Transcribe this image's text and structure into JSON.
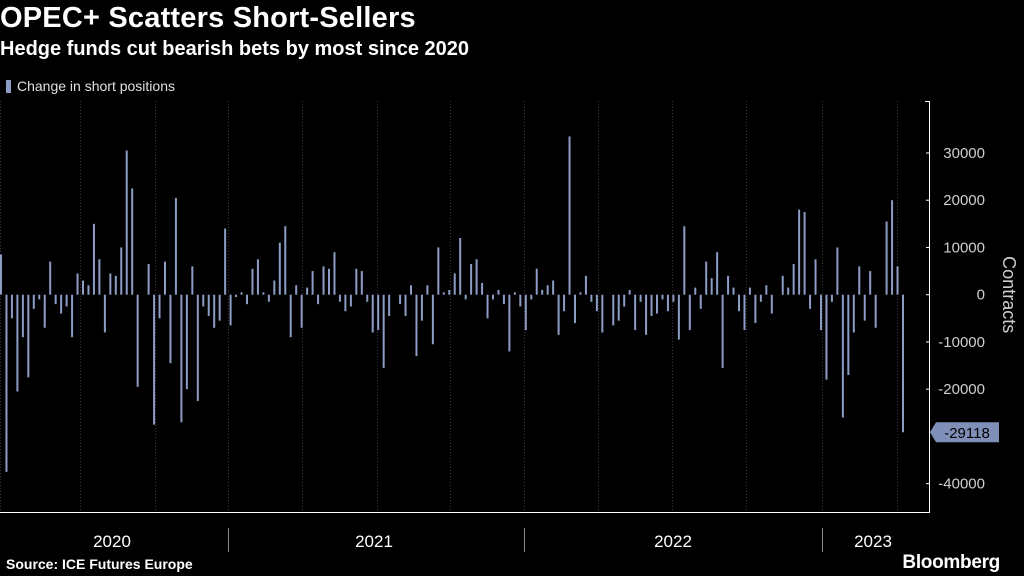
{
  "title": "OPEC+ Scatters Short-Sellers",
  "subtitle": "Hedge funds cut bearish bets by most since 2020",
  "source": "Source: ICE Futures Europe",
  "brand": "Bloomberg",
  "colors": {
    "bar": "#8c9cc4",
    "background": "#000000",
    "grid": "#3a3a3a",
    "text": "#ffffff",
    "muted": "#cfcfcf"
  },
  "chart_data": {
    "type": "bar",
    "title": "OPEC+ Scatters Short-Sellers",
    "subtitle": "Hedge funds cut bearish bets by most since 2020",
    "ylabel": "Contracts",
    "ylim": [
      -46000,
      41000
    ],
    "yticks": [
      30000,
      20000,
      10000,
      0,
      -10000,
      -20000,
      -40000
    ],
    "y_axis_side": "right",
    "grid": "vertical dotted",
    "legend": "top-left",
    "x_tick_labels": [
      "2020",
      "2021",
      "2022",
      "2023"
    ],
    "callout": {
      "label": "-29118",
      "value": -29118
    },
    "series": [
      {
        "name": "Change in short positions",
        "values": [
          8500,
          -37500,
          -5000,
          -20500,
          -9000,
          -17500,
          -3000,
          -1000,
          -7000,
          7000,
          -2000,
          -4000,
          -2500,
          -9000,
          4500,
          3000,
          2000,
          15000,
          7500,
          -8000,
          4500,
          4000,
          10000,
          30500,
          22500,
          -19500,
          0,
          6500,
          -27500,
          -5000,
          7000,
          -14500,
          20500,
          -27000,
          -20000,
          6000,
          -22500,
          -2500,
          -4500,
          -7000,
          -5500,
          14000,
          -6500,
          -500,
          500,
          -2000,
          5500,
          7500,
          500,
          -1500,
          3000,
          11000,
          14500,
          -9000,
          2000,
          -7000,
          1500,
          5000,
          -2000,
          6000,
          5500,
          9000,
          -1500,
          -3500,
          -2500,
          5500,
          5000,
          -1500,
          -8000,
          -7500,
          -15500,
          -4500,
          0,
          -2000,
          -4500,
          2000,
          -13000,
          -5500,
          2000,
          -10500,
          10000,
          500,
          1000,
          4500,
          12000,
          -1000,
          6500,
          7500,
          2500,
          -5000,
          -1000,
          1000,
          -2000,
          -12000,
          500,
          -2500,
          -7500,
          -1000,
          5500,
          1000,
          2000,
          3000,
          -8500,
          -3500,
          33500,
          -6000,
          500,
          4000,
          -1500,
          -3500,
          -8000,
          0,
          -6500,
          -5500,
          -2500,
          1000,
          -7500,
          -1500,
          -8500,
          -4500,
          -4000,
          -1000,
          -3500,
          -1500,
          -9500,
          14500,
          -7500,
          1500,
          -3000,
          7000,
          3500,
          9000,
          -15500,
          4000,
          1500,
          -3500,
          -7500,
          1500,
          -6000,
          -1500,
          2000,
          -4000,
          0,
          4000,
          1500,
          6500,
          18000,
          17500,
          -3000,
          7500,
          -7500,
          -18000,
          -1500,
          10000,
          -26000,
          -17000,
          -8000,
          6000,
          -5500,
          5000,
          -7000,
          0,
          15500,
          20000,
          6000,
          -29118
        ]
      }
    ]
  }
}
